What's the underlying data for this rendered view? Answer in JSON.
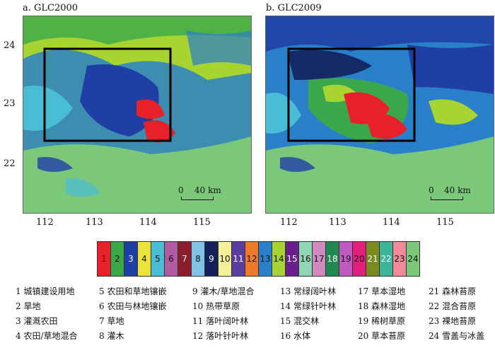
{
  "panels": [
    {
      "title": "a. GLC2000",
      "scale_zero": "0",
      "scale_dist": "40 km"
    },
    {
      "title": "b. GLC2009",
      "scale_zero": "0",
      "scale_dist": "40 km"
    }
  ],
  "y_ticks": [
    "24",
    "23",
    "22"
  ],
  "x_ticks": [
    "112",
    "113",
    "114",
    "115"
  ],
  "colors": {
    "c1": "#e8202a",
    "c2": "#3aa84a",
    "c3": "#1f3fa6",
    "c4": "#ede43a",
    "c5": "#49bcd6",
    "c6": "#b05aa0",
    "c7": "#8a1e2a",
    "c8": "#7fc4e8",
    "c9": "#13205a",
    "c10": "#f5f09a",
    "c11": "#5a3fa0",
    "c12": "#f07a2a",
    "c13": "#2a80c8",
    "c14": "#a8d432",
    "c15": "#6a1e8a",
    "c16": "#8fd6b4",
    "c17": "#d08ac0",
    "c18": "#1e8a50",
    "c19": "#c05ac0",
    "c20": "#e0207a",
    "c21": "#7a8a20",
    "c22": "#3ab49a",
    "c23": "#f08a9a",
    "c24": "#7cc87a"
  },
  "legend_numbers": [
    "1",
    "2",
    "3",
    "4",
    "5",
    "6",
    "7",
    "8",
    "9",
    "10",
    "11",
    "12",
    "13",
    "14",
    "15",
    "16",
    "17",
    "18",
    "19",
    "20",
    "21",
    "22",
    "23",
    "24"
  ],
  "classes": [
    "1 城镇建设用地",
    "2 旱地",
    "3 灌溉农田",
    "4 农田/草地混合",
    "5 农田和草地镶嵌",
    "6 农田与林地镶嵌",
    "7 草地",
    "8 灌木",
    "9 灌木/草地混合",
    "10 热带草原",
    "11 落叶阔叶林",
    "12 落叶针叶林",
    "13 常绿阔叶林",
    "14 常绿针叶林",
    "15 混交林",
    "16 水体",
    "17 草本湿地",
    "18 森林湿地",
    "19 稀树草原",
    "20 草本苔原",
    "21 森林苔原",
    "22 混合苔原",
    "23 裸地苔原",
    "24 雪盖与冰盖"
  ]
}
